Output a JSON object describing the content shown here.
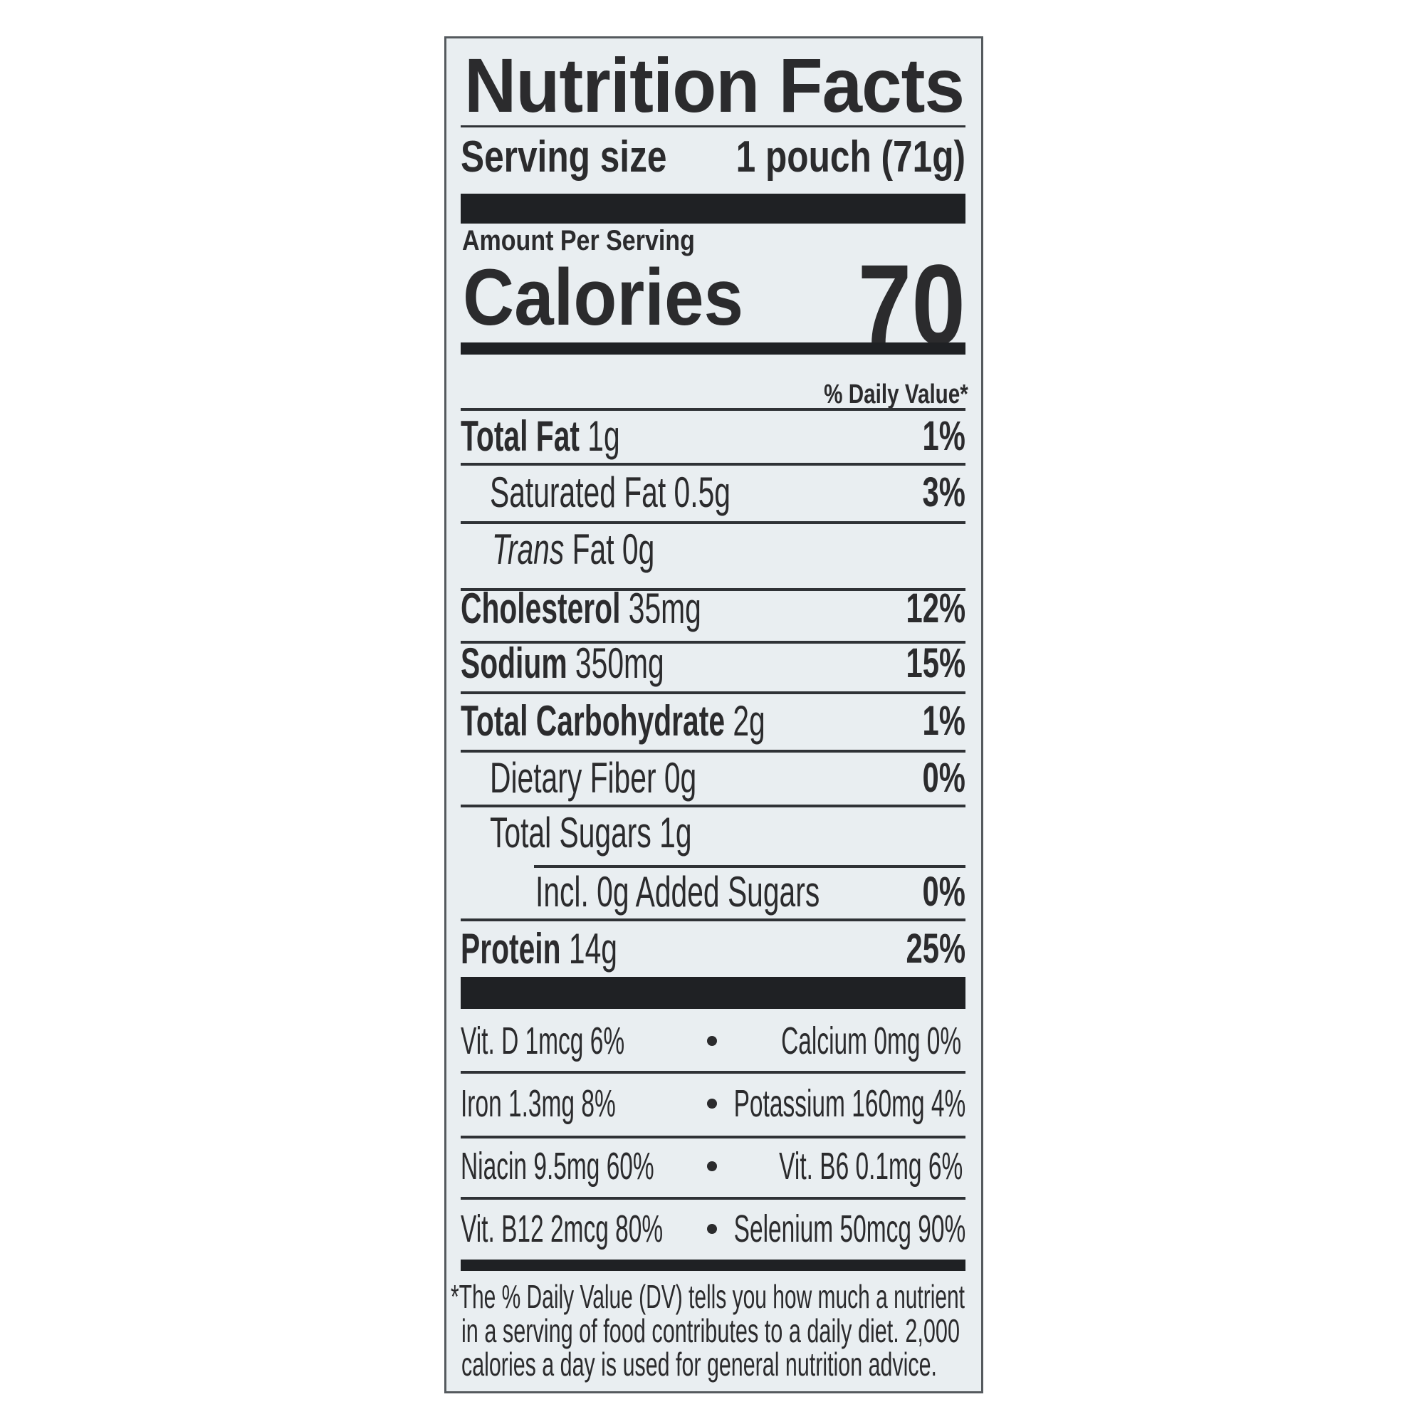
{
  "title": "Nutrition Facts",
  "serving": {
    "label": "Serving size",
    "value": "1 pouch (71g)"
  },
  "amount_per_serving": "Amount Per Serving",
  "calories": {
    "label": "Calories",
    "value": "70"
  },
  "dv_header": "% Daily Value*",
  "nutrients": [
    {
      "name": "Total Fat",
      "amount": "1g",
      "dv": "1%"
    },
    {
      "name": "Saturated Fat",
      "amount": "0.5g",
      "dv": "3%"
    },
    {
      "name": "Trans",
      "amount": "Fat 0g",
      "dv": ""
    },
    {
      "name": "Cholesterol",
      "amount": "35mg",
      "dv": "12%"
    },
    {
      "name": "Sodium",
      "amount": "350mg",
      "dv": "15%"
    },
    {
      "name": "Total Carbohydrate",
      "amount": "2g",
      "dv": "1%"
    },
    {
      "name": "Dietary Fiber",
      "amount": "0g",
      "dv": "0%"
    },
    {
      "name": "Total Sugars",
      "amount": "1g",
      "dv": ""
    },
    {
      "name": "Incl. 0g Added Sugars",
      "amount": "",
      "dv": "0%"
    },
    {
      "name": "Protein",
      "amount": "14g",
      "dv": "25%"
    }
  ],
  "vitamins": [
    {
      "left": "Vit. D 1mcg 6%",
      "right": "Calcium 0mg 0%"
    },
    {
      "left": "Iron 1.3mg 8%",
      "right": "Potassium 160mg 4%"
    },
    {
      "left": "Niacin 9.5mg 60%",
      "right": "Vit. B6 0.1mg 6%"
    },
    {
      "left": "Vit. B12 2mcg 80%",
      "right": "Selenium 50mcg 90%"
    }
  ],
  "footnote": [
    "*The % Daily Value (DV) tells you how much a nutrient",
    "in a serving of food contributes to a daily diet. 2,000",
    "calories a day is used for general nutrition advice."
  ],
  "colors": {
    "background": "#e9eef1",
    "text": "#2b2b2d",
    "rules": "#1f2124"
  }
}
